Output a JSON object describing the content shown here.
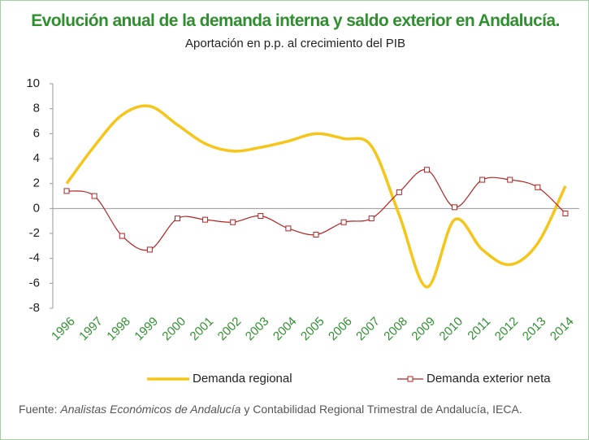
{
  "chart_data": {
    "type": "line",
    "title": "Evolución anual de la demanda interna y saldo exterior en Andalucía.",
    "subtitle": "Aportación en p.p. al crecimiento del PIB",
    "categories": [
      "1996",
      "1997",
      "1998",
      "1999",
      "2000",
      "2001",
      "2002",
      "2003",
      "2004",
      "2005",
      "2006",
      "2007",
      "2008",
      "2009",
      "2010",
      "2011",
      "2012",
      "2013",
      "2014"
    ],
    "series": [
      {
        "name": "Demanda regional",
        "color": "#f5c518",
        "values": [
          2.0,
          5.0,
          7.5,
          8.2,
          6.7,
          5.2,
          4.6,
          4.9,
          5.4,
          6.0,
          5.6,
          5.0,
          -0.5,
          -6.3,
          -0.9,
          -3.3,
          -4.5,
          -2.8,
          1.8
        ]
      },
      {
        "name": "Demanda exterior neta",
        "color": "#b22222",
        "values": [
          1.4,
          1.0,
          -2.2,
          -3.3,
          -0.8,
          -0.9,
          -1.1,
          -0.6,
          -1.6,
          -2.1,
          -1.1,
          -0.8,
          1.3,
          3.1,
          0.1,
          2.3,
          2.3,
          1.7,
          -0.4
        ]
      }
    ],
    "ylim": [
      -8,
      10
    ],
    "yticks": [
      -8,
      -6,
      -4,
      -2,
      0,
      2,
      4,
      6,
      8,
      10
    ],
    "source_prefix": "Fuente:",
    "source_italic": "Analistas Económicos de Andalucía",
    "source_suffix": "y Contabilidad Regional Trimestral de Andalucía, IECA."
  }
}
